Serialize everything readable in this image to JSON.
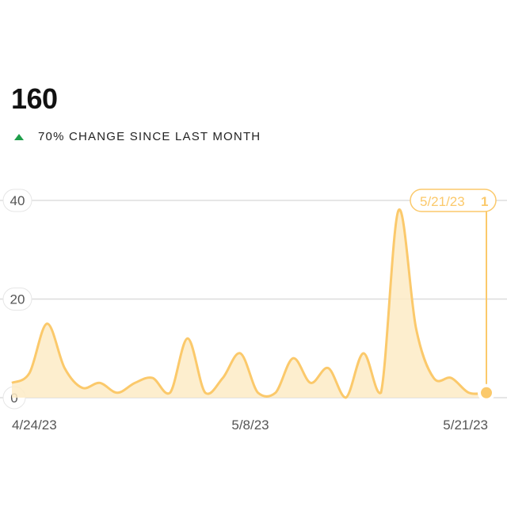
{
  "summary": {
    "total": "160",
    "change_label": "70% CHANGE SINCE LAST MONTH",
    "change_direction": "up",
    "change_color": "#1e9e4a"
  },
  "chart_data": {
    "type": "area",
    "x_start": "4/24/23",
    "x_end": "5/21/23",
    "x_tick_labels": [
      "4/24/23",
      "5/8/23",
      "5/21/23"
    ],
    "y_tick_labels": [
      "0",
      "20",
      "40"
    ],
    "ylim": [
      0,
      40
    ],
    "grid": true,
    "series_color": "#fbc96b",
    "fill_color": "#fdebc6",
    "values": [
      3,
      5,
      15,
      6,
      2,
      3,
      1,
      3,
      4,
      1,
      12,
      1,
      4,
      9,
      1,
      1,
      8,
      3,
      6,
      0,
      9,
      1,
      38,
      14,
      4,
      4,
      1,
      1
    ],
    "tooltip": {
      "date": "5/21/23",
      "value": "1"
    }
  }
}
